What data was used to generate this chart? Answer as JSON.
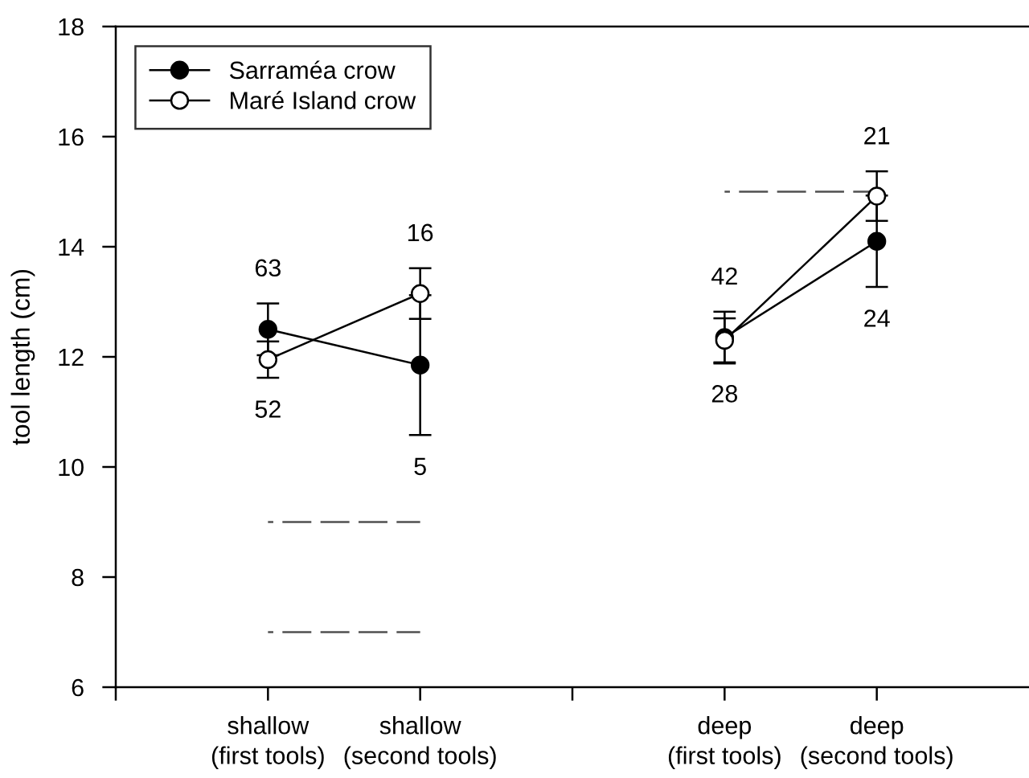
{
  "chart_data": {
    "type": "line",
    "ylabel": "tool length (cm)",
    "categories": [
      "shallow\n(first tools)",
      "shallow\n(second tools)",
      null,
      "deep\n(first tools)",
      "deep\n(second tools)"
    ],
    "ylim": [
      6,
      18
    ],
    "yticks": [
      6,
      8,
      10,
      12,
      14,
      16,
      18
    ],
    "grid": false,
    "legend": "top left",
    "marker": "circle",
    "line_style": "solid",
    "series": [
      {
        "name": "Sarraméa crow",
        "color": "#000000",
        "values": [
          12.5,
          11.85,
          null,
          12.35,
          14.1
        ],
        "errors": [
          0.47,
          1.27,
          null,
          0.47,
          0.83
        ]
      },
      {
        "name": "Maré Island crow",
        "color": "#ffffff",
        "values": [
          11.95,
          13.15,
          null,
          12.3,
          14.92
        ],
        "errors": [
          0.33,
          0.46,
          null,
          0.4,
          0.45
        ]
      },
      {
        "type": "line",
        "color": "#505050",
        "line_style": "dashed",
        "marker": "none",
        "values": [
          9,
          9,
          null,
          null,
          null
        ]
      },
      {
        "type": "line",
        "color": "#505050",
        "line_style": "dashed",
        "marker": "none",
        "values": [
          7,
          7,
          null,
          null,
          null
        ]
      },
      {
        "type": "line",
        "color": "#505050",
        "line_style": "dashed",
        "marker": "none",
        "values": [
          null,
          null,
          null,
          15,
          15
        ]
      }
    ],
    "annotations": [
      {
        "text": "63",
        "x": "shallow\n(first tools)",
        "y": 12.97
      },
      {
        "text": "52",
        "x": "shallow\n(first tools)",
        "y": 11.62
      },
      {
        "text": "16",
        "x": "shallow\n(second tools)",
        "y": 13.61
      },
      {
        "text": "5",
        "x": "shallow\n(second tools)",
        "y": 10.58
      },
      {
        "text": "42",
        "x": "deep\n(first tools)",
        "y": 12.82
      },
      {
        "text": "28",
        "x": "deep\n(first tools)",
        "y": 11.9
      },
      {
        "text": "21",
        "x": "deep\n(second tools)",
        "y": 15.37
      },
      {
        "text": "24",
        "x": "deep\n(second tools)",
        "y": 13.27
      }
    ]
  }
}
